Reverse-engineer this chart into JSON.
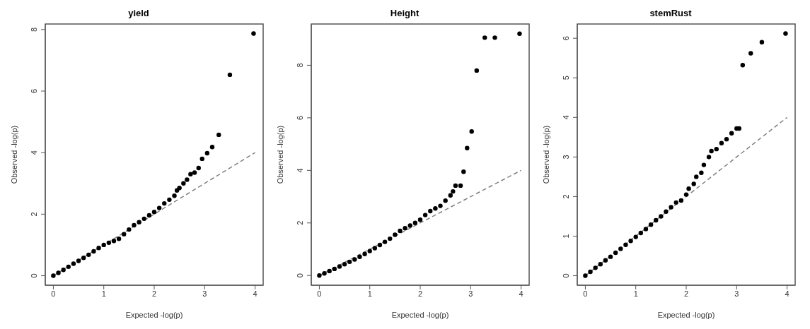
{
  "chart_data": [
    {
      "type": "scatter",
      "title": "yield",
      "xlabel": "Expected -log(p)",
      "ylabel": "Observed -log(p)",
      "xlim": [
        -0.16,
        4.16
      ],
      "ylim": [
        -0.31,
        8.18
      ],
      "xticks": [
        0,
        1,
        2,
        3,
        4
      ],
      "yticks": [
        0,
        2,
        4,
        6,
        8
      ],
      "series": [
        {
          "marker": "circle",
          "color": "#000000",
          "x": [
            0,
            0.1,
            0.2,
            0.3,
            0.4,
            0.5,
            0.6,
            0.7,
            0.8,
            0.9,
            1.0,
            1.1,
            1.2,
            1.3,
            1.4,
            1.5,
            1.6,
            1.7,
            1.8,
            1.9,
            2.0,
            2.1,
            2.2,
            2.3,
            2.4,
            2.45,
            2.5,
            2.58,
            2.65,
            2.72,
            2.8,
            2.88,
            2.95,
            3.05,
            3.15,
            3.28,
            3.5,
            3.97
          ],
          "values": [
            0,
            0.09,
            0.19,
            0.29,
            0.39,
            0.48,
            0.58,
            0.68,
            0.79,
            0.9,
            1.0,
            1.07,
            1.13,
            1.2,
            1.35,
            1.5,
            1.64,
            1.74,
            1.85,
            1.96,
            2.07,
            2.2,
            2.35,
            2.47,
            2.6,
            2.77,
            2.85,
            3.0,
            3.12,
            3.3,
            3.35,
            3.5,
            3.8,
            3.98,
            4.18,
            4.58,
            6.53,
            7.87
          ]
        },
        {
          "type": "line",
          "color": "#808080",
          "line_style": "dashed",
          "x": [
            0,
            4
          ],
          "values": [
            0,
            4
          ]
        }
      ]
    },
    {
      "type": "scatter",
      "title": "Height",
      "xlabel": "Expected -log(p)",
      "ylabel": "Observed -log(p)",
      "xlim": [
        -0.16,
        4.16
      ],
      "ylim": [
        -0.37,
        9.57
      ],
      "xticks": [
        0,
        1,
        2,
        3,
        4
      ],
      "yticks": [
        0,
        2,
        4,
        6,
        8
      ],
      "series": [
        {
          "marker": "circle",
          "color": "#000000",
          "x": [
            0,
            0.1,
            0.2,
            0.3,
            0.4,
            0.5,
            0.6,
            0.7,
            0.8,
            0.9,
            1.0,
            1.1,
            1.2,
            1.3,
            1.4,
            1.5,
            1.6,
            1.7,
            1.8,
            1.9,
            2.0,
            2.1,
            2.2,
            2.3,
            2.4,
            2.5,
            2.6,
            2.65,
            2.7,
            2.8,
            2.86,
            2.93,
            3.02,
            3.12,
            3.28,
            3.48,
            3.97
          ],
          "values": [
            0,
            0.08,
            0.17,
            0.25,
            0.34,
            0.43,
            0.52,
            0.61,
            0.71,
            0.82,
            0.93,
            1.04,
            1.16,
            1.28,
            1.4,
            1.55,
            1.7,
            1.8,
            1.9,
            2.0,
            2.12,
            2.3,
            2.45,
            2.55,
            2.65,
            2.85,
            3.05,
            3.2,
            3.42,
            3.42,
            3.95,
            4.85,
            5.48,
            7.8,
            9.05,
            9.05,
            9.2
          ]
        },
        {
          "type": "line",
          "color": "#808080",
          "line_style": "dashed",
          "x": [
            0,
            4
          ],
          "values": [
            0,
            4
          ]
        }
      ]
    },
    {
      "type": "scatter",
      "title": "stemRust",
      "xlabel": "Expected -log(p)",
      "ylabel": "Observed -log(p)",
      "xlim": [
        -0.16,
        4.16
      ],
      "ylim": [
        -0.24,
        6.36
      ],
      "xticks": [
        0,
        1,
        2,
        3,
        4
      ],
      "yticks": [
        0,
        1,
        2,
        3,
        4,
        5,
        6
      ],
      "series": [
        {
          "marker": "circle",
          "color": "#000000",
          "x": [
            0,
            0.1,
            0.2,
            0.3,
            0.4,
            0.5,
            0.6,
            0.7,
            0.8,
            0.9,
            1.0,
            1.1,
            1.2,
            1.3,
            1.4,
            1.5,
            1.6,
            1.7,
            1.8,
            1.9,
            2.0,
            2.05,
            2.15,
            2.2,
            2.3,
            2.35,
            2.45,
            2.5,
            2.6,
            2.7,
            2.8,
            2.9,
            3.0,
            3.05,
            3.12,
            3.28,
            3.5,
            3.97
          ],
          "values": [
            0,
            0.1,
            0.2,
            0.29,
            0.39,
            0.48,
            0.58,
            0.68,
            0.78,
            0.88,
            0.98,
            1.08,
            1.18,
            1.29,
            1.4,
            1.5,
            1.62,
            1.73,
            1.85,
            1.9,
            2.05,
            2.2,
            2.32,
            2.5,
            2.6,
            2.8,
            3.0,
            3.15,
            3.2,
            3.35,
            3.45,
            3.6,
            3.72,
            3.72,
            5.32,
            5.62,
            5.9,
            6.12
          ]
        },
        {
          "type": "line",
          "color": "#808080",
          "line_style": "dashed",
          "x": [
            0,
            4
          ],
          "values": [
            0,
            4
          ]
        }
      ]
    }
  ]
}
